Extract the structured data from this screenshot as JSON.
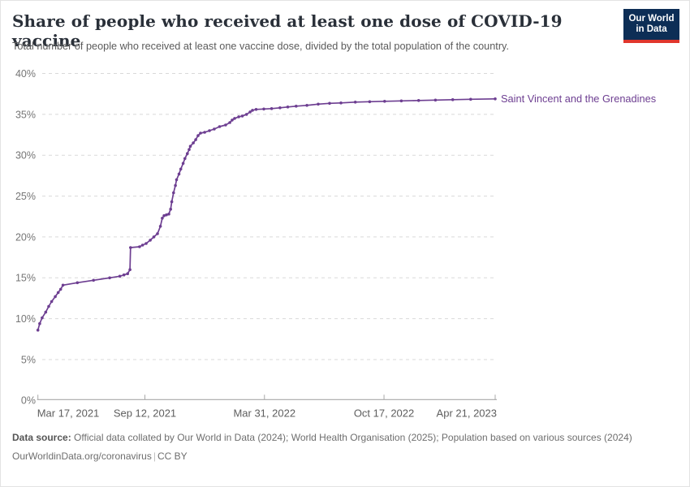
{
  "header": {
    "title": "Share of people who received at least one dose of COVID-19 vaccine",
    "subtitle": "Total number of people who received at least one vaccine dose, divided by the total population of the country."
  },
  "logo": {
    "line1": "Our World",
    "line2": "in Data",
    "bg_color": "#0d2e56",
    "accent_color": "#e0362c"
  },
  "chart_data": {
    "type": "line",
    "title": "Share of people who received at least one dose of COVID-19 vaccine",
    "ylabel": "",
    "xlabel": "",
    "ylim": [
      0,
      40
    ],
    "grid": "dashed-horizontal",
    "legend_position": "right-of-line-end",
    "yticks": [
      {
        "value": 0,
        "label": "0%"
      },
      {
        "value": 5,
        "label": "5%"
      },
      {
        "value": 10,
        "label": "10%"
      },
      {
        "value": 15,
        "label": "15%"
      },
      {
        "value": 20,
        "label": "20%"
      },
      {
        "value": 25,
        "label": "25%"
      },
      {
        "value": 30,
        "label": "30%"
      },
      {
        "value": 35,
        "label": "35%"
      },
      {
        "value": 40,
        "label": "40%"
      }
    ],
    "x_domain": [
      "2021-03-17",
      "2023-04-21"
    ],
    "xticks": [
      {
        "date": "2021-03-17",
        "label": "Mar 17, 2021"
      },
      {
        "date": "2021-09-12",
        "label": "Sep 12, 2021"
      },
      {
        "date": "2022-03-31",
        "label": "Mar 31, 2022"
      },
      {
        "date": "2022-10-17",
        "label": "Oct 17, 2022"
      },
      {
        "date": "2023-04-21",
        "label": "Apr 21, 2023"
      }
    ],
    "colors": {
      "series": "#6d3e91",
      "gridline": "#d9d9d9",
      "axis": "#a8a8a8",
      "y_tick_label": "#757575",
      "x_tick_label": "#5e5e5e"
    },
    "series": [
      {
        "name": "Saint Vincent and the Grenadines",
        "color": "#6d3e91",
        "points": [
          [
            "2021-03-17",
            8.6
          ],
          [
            "2021-03-20",
            9.4
          ],
          [
            "2021-03-24",
            10.1
          ],
          [
            "2021-03-30",
            10.8
          ],
          [
            "2021-04-04",
            11.5
          ],
          [
            "2021-04-09",
            12.1
          ],
          [
            "2021-04-15",
            12.7
          ],
          [
            "2021-04-20",
            13.2
          ],
          [
            "2021-04-24",
            13.6
          ],
          [
            "2021-04-28",
            14.1
          ],
          [
            "2021-05-22",
            14.4
          ],
          [
            "2021-06-18",
            14.7
          ],
          [
            "2021-07-15",
            15.0
          ],
          [
            "2021-08-01",
            15.2
          ],
          [
            "2021-08-08",
            15.35
          ],
          [
            "2021-08-14",
            15.5
          ],
          [
            "2021-08-18",
            16.0
          ],
          [
            "2021-08-19",
            18.7
          ],
          [
            "2021-09-03",
            18.8
          ],
          [
            "2021-09-08",
            19.0
          ],
          [
            "2021-09-14",
            19.2
          ],
          [
            "2021-09-21",
            19.6
          ],
          [
            "2021-09-27",
            20.0
          ],
          [
            "2021-10-03",
            20.4
          ],
          [
            "2021-10-08",
            21.3
          ],
          [
            "2021-10-11",
            22.3
          ],
          [
            "2021-10-14",
            22.6
          ],
          [
            "2021-10-18",
            22.7
          ],
          [
            "2021-10-22",
            22.8
          ],
          [
            "2021-10-25",
            23.4
          ],
          [
            "2021-10-27",
            24.3
          ],
          [
            "2021-10-30",
            25.4
          ],
          [
            "2021-11-02",
            26.3
          ],
          [
            "2021-11-04",
            27.0
          ],
          [
            "2021-11-08",
            27.7
          ],
          [
            "2021-11-11",
            28.3
          ],
          [
            "2021-11-15",
            29.0
          ],
          [
            "2021-11-18",
            29.6
          ],
          [
            "2021-11-22",
            30.2
          ],
          [
            "2021-11-25",
            30.7
          ],
          [
            "2021-11-27",
            31.1
          ],
          [
            "2021-12-02",
            31.5
          ],
          [
            "2021-12-06",
            31.9
          ],
          [
            "2021-12-10",
            32.4
          ],
          [
            "2021-12-14",
            32.7
          ],
          [
            "2021-12-21",
            32.8
          ],
          [
            "2021-12-29",
            33.0
          ],
          [
            "2022-01-06",
            33.2
          ],
          [
            "2022-01-15",
            33.5
          ],
          [
            "2022-01-25",
            33.7
          ],
          [
            "2022-02-01",
            34.0
          ],
          [
            "2022-02-05",
            34.3
          ],
          [
            "2022-02-09",
            34.5
          ],
          [
            "2022-02-16",
            34.7
          ],
          [
            "2022-02-22",
            34.8
          ],
          [
            "2022-03-01",
            35.0
          ],
          [
            "2022-03-07",
            35.3
          ],
          [
            "2022-03-11",
            35.5
          ],
          [
            "2022-03-17",
            35.6
          ],
          [
            "2022-03-30",
            35.65
          ],
          [
            "2022-04-12",
            35.7
          ],
          [
            "2022-04-26",
            35.8
          ],
          [
            "2022-05-09",
            35.9
          ],
          [
            "2022-05-23",
            36.0
          ],
          [
            "2022-06-10",
            36.1
          ],
          [
            "2022-06-29",
            36.25
          ],
          [
            "2022-07-18",
            36.35
          ],
          [
            "2022-08-06",
            36.4
          ],
          [
            "2022-08-30",
            36.5
          ],
          [
            "2022-09-23",
            36.55
          ],
          [
            "2022-10-18",
            36.6
          ],
          [
            "2022-11-15",
            36.65
          ],
          [
            "2022-12-14",
            36.7
          ],
          [
            "2023-01-11",
            36.75
          ],
          [
            "2023-02-09",
            36.8
          ],
          [
            "2023-03-11",
            36.85
          ],
          [
            "2023-04-21",
            36.9
          ]
        ]
      }
    ]
  },
  "footer": {
    "source_label": "Data source:",
    "source_text": " Official data collated by Our World in Data (2024); World Health Organisation (2025); Population based on various sources (2024)",
    "url": "OurWorldinData.org/coronavirus",
    "separator": "|",
    "license": "CC BY"
  }
}
